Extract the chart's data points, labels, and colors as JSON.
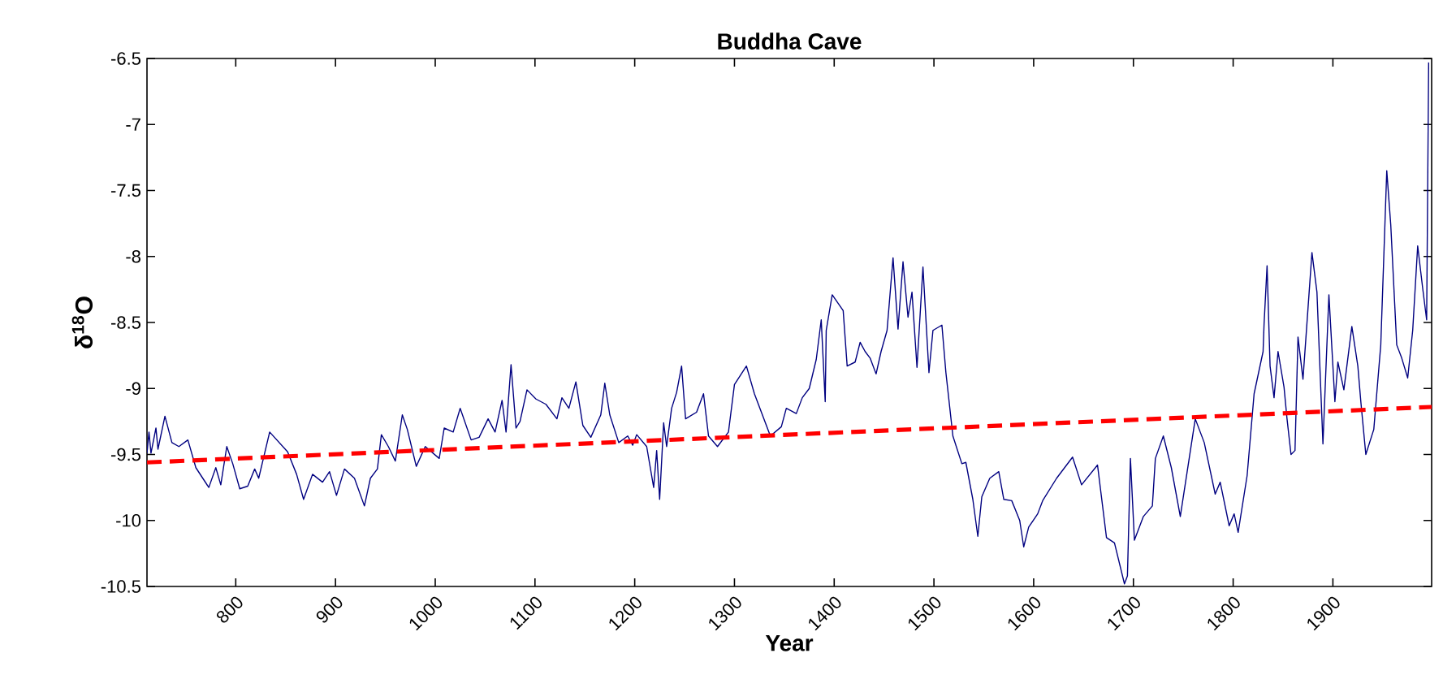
{
  "chart_data": {
    "type": "line",
    "title": "Buddha Cave",
    "xlabel": "Year",
    "ylabel": "δ$^{18}$O",
    "xlim": [
      711,
      1999
    ],
    "xticks": [
      800,
      900,
      1000,
      1100,
      1200,
      1300,
      1400,
      1500,
      1600,
      1700,
      1800,
      1900
    ],
    "ylim": [
      -10.5,
      -6.5
    ],
    "yticks": [
      -10.5,
      -10,
      -9.5,
      -9,
      -8.5,
      -8,
      -7.5,
      -7,
      -6.5
    ],
    "series": [
      {
        "color": "#000080",
        "line_style": "solid",
        "x": [
          711,
          713,
          715,
          720,
          722,
          729,
          736,
          743,
          752,
          760,
          773,
          780,
          785,
          791,
          797,
          804,
          812,
          819,
          823,
          834,
          852,
          861,
          868,
          877,
          887,
          894,
          901,
          909,
          919,
          929,
          935,
          942,
          946,
          953,
          960,
          967,
          972,
          981,
          990,
          1004,
          1009,
          1018,
          1025,
          1036,
          1044,
          1053,
          1060,
          1067,
          1071,
          1076,
          1081,
          1085,
          1092,
          1101,
          1111,
          1122,
          1127,
          1134,
          1141,
          1148,
          1156,
          1166,
          1170,
          1175,
          1184,
          1193,
          1198,
          1202,
          1212,
          1219,
          1222,
          1225,
          1229,
          1232,
          1237,
          1242,
          1247,
          1251,
          1262,
          1269,
          1274,
          1283,
          1294,
          1300,
          1312,
          1320,
          1327,
          1336,
          1347,
          1352,
          1362,
          1368,
          1375,
          1382,
          1387,
          1391,
          1392,
          1398,
          1409,
          1413,
          1421,
          1426,
          1431,
          1436,
          1442,
          1447,
          1453,
          1459,
          1464,
          1469,
          1474,
          1478,
          1483,
          1489,
          1495,
          1499,
          1508,
          1512,
          1519,
          1528,
          1532,
          1539,
          1544,
          1548,
          1556,
          1565,
          1570,
          1578,
          1586,
          1590,
          1595,
          1604,
          1609,
          1623,
          1639,
          1648,
          1664,
          1673,
          1681,
          1691,
          1694,
          1697,
          1701,
          1710,
          1719,
          1722,
          1730,
          1738,
          1747,
          1762,
          1771,
          1782,
          1787,
          1796,
          1801,
          1805,
          1814,
          1821,
          1830,
          1831,
          1834,
          1837,
          1841,
          1845,
          1851,
          1854,
          1858,
          1862,
          1865,
          1870,
          1879,
          1884,
          1890,
          1896,
          1902,
          1905,
          1911,
          1919,
          1925,
          1928,
          1933,
          1941,
          1948,
          1954,
          1958,
          1964,
          1969,
          1975,
          1980,
          1985,
          1990,
          1994,
          1996
        ],
        "values": [
          -9.49,
          -9.33,
          -9.49,
          -9.3,
          -9.46,
          -9.21,
          -9.41,
          -9.44,
          -9.39,
          -9.6,
          -9.75,
          -9.6,
          -9.73,
          -9.44,
          -9.57,
          -9.76,
          -9.74,
          -9.61,
          -9.68,
          -9.33,
          -9.48,
          -9.65,
          -9.84,
          -9.65,
          -9.71,
          -9.63,
          -9.81,
          -9.61,
          -9.68,
          -9.89,
          -9.68,
          -9.61,
          -9.35,
          -9.44,
          -9.55,
          -9.2,
          -9.31,
          -9.59,
          -9.44,
          -9.53,
          -9.3,
          -9.33,
          -9.15,
          -9.39,
          -9.37,
          -9.23,
          -9.33,
          -9.09,
          -9.33,
          -8.82,
          -9.3,
          -9.25,
          -9.01,
          -9.08,
          -9.12,
          -9.23,
          -9.07,
          -9.15,
          -8.95,
          -9.28,
          -9.37,
          -9.2,
          -8.96,
          -9.2,
          -9.41,
          -9.36,
          -9.43,
          -9.35,
          -9.44,
          -9.75,
          -9.47,
          -9.84,
          -9.26,
          -9.44,
          -9.15,
          -9.03,
          -8.83,
          -9.23,
          -9.18,
          -9.04,
          -9.36,
          -9.44,
          -9.33,
          -8.97,
          -8.83,
          -9.04,
          -9.18,
          -9.36,
          -9.29,
          -9.15,
          -9.19,
          -9.07,
          -9.0,
          -8.78,
          -8.48,
          -9.1,
          -8.56,
          -8.29,
          -8.41,
          -8.83,
          -8.8,
          -8.65,
          -8.72,
          -8.77,
          -8.89,
          -8.72,
          -8.56,
          -8.01,
          -8.55,
          -8.04,
          -8.46,
          -8.27,
          -8.84,
          -8.08,
          -8.88,
          -8.56,
          -8.52,
          -8.88,
          -9.36,
          -9.57,
          -9.56,
          -9.84,
          -10.12,
          -9.82,
          -9.68,
          -9.63,
          -9.84,
          -9.85,
          -10.0,
          -10.2,
          -10.05,
          -9.95,
          -9.85,
          -9.68,
          -9.52,
          -9.73,
          -9.58,
          -10.13,
          -10.17,
          -10.48,
          -10.42,
          -9.53,
          -10.15,
          -9.97,
          -9.89,
          -9.53,
          -9.36,
          -9.6,
          -9.97,
          -9.23,
          -9.41,
          -9.8,
          -9.71,
          -10.04,
          -9.95,
          -10.09,
          -9.66,
          -9.04,
          -8.72,
          -8.51,
          -8.07,
          -8.83,
          -9.07,
          -8.72,
          -8.99,
          -9.23,
          -9.5,
          -9.47,
          -8.61,
          -8.93,
          -7.97,
          -8.27,
          -9.42,
          -8.29,
          -9.1,
          -8.8,
          -9.01,
          -8.53,
          -8.83,
          -9.1,
          -9.5,
          -9.31,
          -8.67,
          -7.35,
          -7.76,
          -8.67,
          -8.77,
          -8.92,
          -8.56,
          -7.92,
          -8.24,
          -8.48,
          -6.53
        ]
      },
      {
        "color": "#ff0000",
        "line_style": "dashed",
        "x": [
          711,
          1999
        ],
        "values": [
          -9.56,
          -9.14
        ]
      }
    ]
  }
}
